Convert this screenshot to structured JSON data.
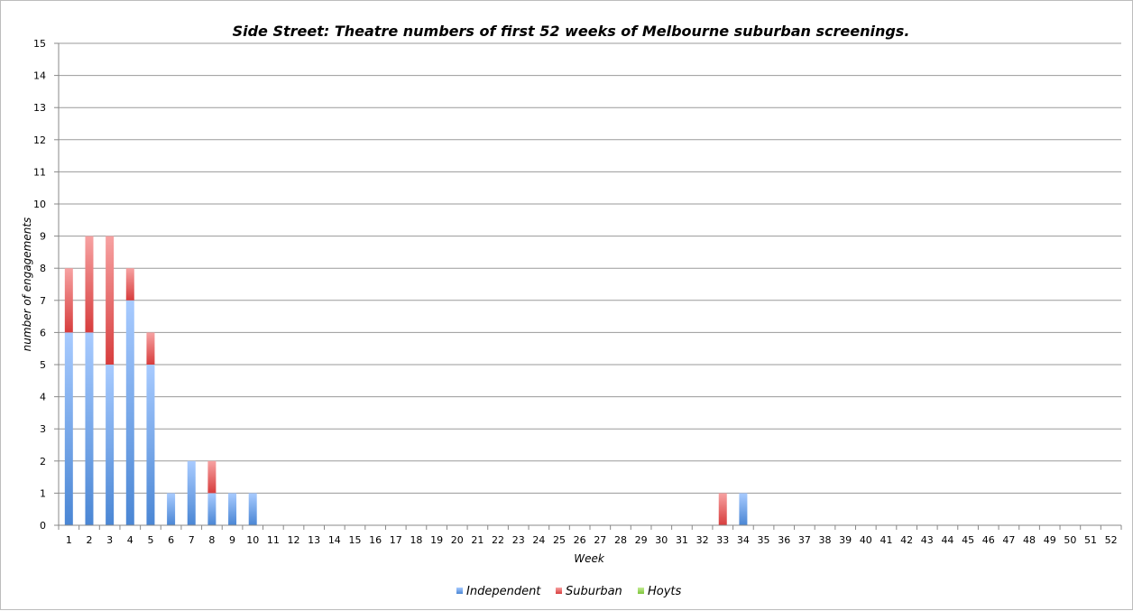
{
  "chart_data": {
    "type": "bar",
    "stacked": true,
    "title": "Side Street: Theatre numbers of first 52 weeks of Melbourne suburban screenings.",
    "xlabel": "Week",
    "ylabel": "number of engagements",
    "ylim": [
      0,
      15
    ],
    "yticks": [
      0,
      1,
      2,
      3,
      4,
      5,
      6,
      7,
      8,
      9,
      10,
      11,
      12,
      13,
      14,
      15
    ],
    "grid": true,
    "legend": "bottom",
    "categories": [
      "1",
      "2",
      "3",
      "4",
      "5",
      "6",
      "7",
      "8",
      "9",
      "10",
      "11",
      "12",
      "13",
      "14",
      "15",
      "16",
      "17",
      "18",
      "19",
      "20",
      "21",
      "22",
      "23",
      "24",
      "25",
      "26",
      "27",
      "28",
      "29",
      "30",
      "31",
      "32",
      "33",
      "34",
      "35",
      "36",
      "37",
      "38",
      "39",
      "40",
      "41",
      "42",
      "43",
      "44",
      "45",
      "46",
      "47",
      "48",
      "49",
      "50",
      "51",
      "52"
    ],
    "series": [
      {
        "name": "Independent",
        "color": "#4a86d4",
        "color_light": "#a8cbff",
        "values": [
          6,
          6,
          5,
          7,
          5,
          1,
          2,
          1,
          1,
          1,
          0,
          0,
          0,
          0,
          0,
          0,
          0,
          0,
          0,
          0,
          0,
          0,
          0,
          0,
          0,
          0,
          0,
          0,
          0,
          0,
          0,
          0,
          0,
          1,
          0,
          0,
          0,
          0,
          0,
          0,
          0,
          0,
          0,
          0,
          0,
          0,
          0,
          0,
          0,
          0,
          0,
          0
        ]
      },
      {
        "name": "Suburban",
        "color": "#d73d3d",
        "color_light": "#f7a2a2",
        "values": [
          2,
          3,
          4,
          1,
          1,
          0,
          0,
          1,
          0,
          0,
          0,
          0,
          0,
          0,
          0,
          0,
          0,
          0,
          0,
          0,
          0,
          0,
          0,
          0,
          0,
          0,
          0,
          0,
          0,
          0,
          0,
          0,
          1,
          0,
          0,
          0,
          0,
          0,
          0,
          0,
          0,
          0,
          0,
          0,
          0,
          0,
          0,
          0,
          0,
          0,
          0,
          0
        ]
      },
      {
        "name": "Hoyts",
        "color": "#7cc43a",
        "color_light": "#c4ec95",
        "values": [
          0,
          0,
          0,
          0,
          0,
          0,
          0,
          0,
          0,
          0,
          0,
          0,
          0,
          0,
          0,
          0,
          0,
          0,
          0,
          0,
          0,
          0,
          0,
          0,
          0,
          0,
          0,
          0,
          0,
          0,
          0,
          0,
          0,
          0,
          0,
          0,
          0,
          0,
          0,
          0,
          0,
          0,
          0,
          0,
          0,
          0,
          0,
          0,
          0,
          0,
          0,
          0
        ]
      }
    ]
  }
}
